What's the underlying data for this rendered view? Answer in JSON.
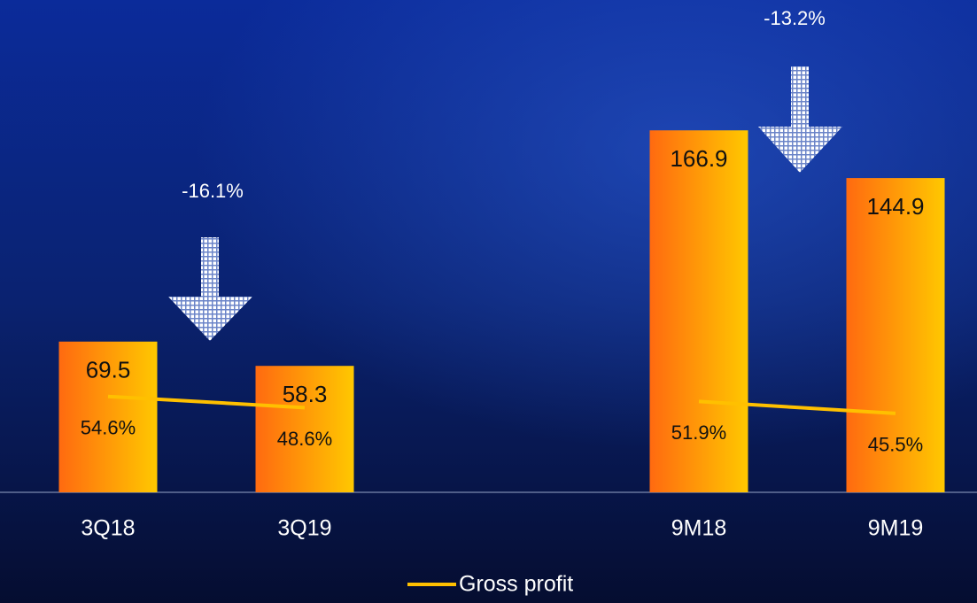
{
  "chart_data": {
    "type": "bar",
    "categories": [
      "3Q18",
      "3Q19",
      "9M18",
      "9M19"
    ],
    "series": [
      {
        "color": "#ff8a00",
        "values": [
          69.5,
          58.3,
          166.9,
          144.9
        ]
      },
      {
        "name": "Gross profit",
        "type": "line",
        "axis": "y2",
        "color": "#ffc000",
        "values": [
          54.6,
          48.6,
          51.9,
          45.5
        ],
        "value_labels": [
          "54.6%",
          "48.6%",
          "51.9%",
          "45.5%"
        ]
      }
    ],
    "ylim": [
      0,
      227
    ],
    "y2lim": [
      3,
      268
    ],
    "annotations": [
      "-16.1%",
      "-13.2%"
    ]
  }
}
